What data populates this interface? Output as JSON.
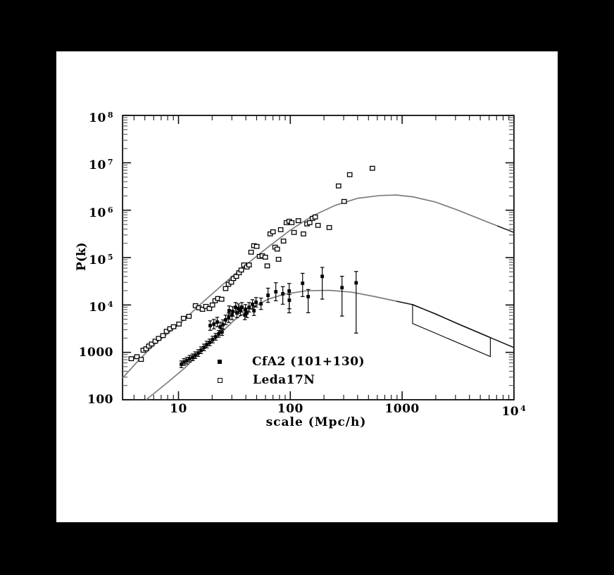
{
  "colors": {
    "page_bg": "#000000",
    "panel_bg": "#ffffff",
    "ink": "#000000",
    "curve_gray": "#7d7d7d"
  },
  "chart_data": {
    "type": "scatter",
    "xlabel": "scale (Mpc/h)",
    "ylabel": "P(k)",
    "x_axis": {
      "log": true,
      "range_log10": [
        0.5,
        4.0
      ],
      "ticks": [
        {
          "main": "10",
          "sup": "",
          "log": 1
        },
        {
          "main": "100",
          "sup": "",
          "log": 2
        },
        {
          "main": "1000",
          "sup": "",
          "log": 3
        },
        {
          "main": "10",
          "sup": "4",
          "log": 4
        }
      ]
    },
    "y_axis": {
      "log": true,
      "range_log10": [
        2,
        8
      ],
      "ticks": [
        {
          "main": "10",
          "sup": "8",
          "log": 8
        },
        {
          "main": "10",
          "sup": "7",
          "log": 7
        },
        {
          "main": "10",
          "sup": "6",
          "log": 6
        },
        {
          "main": "10",
          "sup": "5",
          "log": 5
        },
        {
          "main": "10",
          "sup": "4",
          "log": 4
        },
        {
          "main": "1000",
          "sup": "",
          "log": 3
        },
        {
          "main": "100",
          "sup": "",
          "log": 2
        }
      ]
    },
    "series": [
      {
        "name": "CfA2 (101+130)",
        "marker": "filled-square",
        "points_sPerr": [
          [
            10.6,
            560,
            0.07,
            0.07
          ],
          [
            11.2,
            625,
            0.07,
            0.07
          ],
          [
            11.9,
            668,
            0.07,
            0.07
          ],
          [
            12.6,
            735,
            0.07,
            0.07
          ],
          [
            13.4,
            786,
            0.07,
            0.07
          ],
          [
            14.1,
            872,
            0.07,
            0.07
          ],
          [
            15,
            967,
            0.07,
            0.07
          ],
          [
            15.9,
            1110,
            0.07,
            0.07
          ],
          [
            16.9,
            1270,
            0.07,
            0.07
          ],
          [
            17.9,
            1460,
            0.07,
            0.07
          ],
          [
            19,
            1620,
            0.07,
            0.07
          ],
          [
            20.2,
            1860,
            0.07,
            0.07
          ],
          [
            21.5,
            2130,
            0.07,
            0.07
          ],
          [
            22.9,
            2450,
            0.07,
            0.07
          ],
          [
            24.5,
            2680,
            0.07,
            0.07
          ],
          [
            19.2,
            3670,
            0.1,
            0.1
          ],
          [
            20.7,
            3940,
            0.1,
            0.1
          ],
          [
            22.2,
            4360,
            0.1,
            0.1
          ],
          [
            23.6,
            3440,
            0.1,
            0.1
          ],
          [
            25,
            3850,
            0.1,
            0.1
          ],
          [
            26.4,
            4840,
            0.1,
            0.1
          ],
          [
            28.1,
            5360,
            0.1,
            0.1
          ],
          [
            30.1,
            6150,
            0.1,
            0.1
          ],
          [
            28.4,
            7560,
            0.1,
            0.1
          ],
          [
            30.6,
            7310,
            0.1,
            0.1
          ],
          [
            32.4,
            8940,
            0.1,
            0.1
          ],
          [
            34.4,
            8370,
            0.1,
            0.1
          ],
          [
            36.9,
            8940,
            0.1,
            0.1
          ],
          [
            33.3,
            6810,
            0.1,
            0.1
          ],
          [
            35.9,
            7560,
            0.1,
            0.1
          ],
          [
            39.2,
            6150,
            0.1,
            0.1
          ],
          [
            40.9,
            6810,
            0.1,
            0.1
          ],
          [
            39.7,
            8100,
            0.1,
            0.1
          ],
          [
            42.8,
            8940,
            0.1,
            0.1
          ],
          [
            45.9,
            10280,
            0.1,
            0.1
          ],
          [
            49.4,
            11400,
            0.1,
            0.1
          ],
          [
            47.3,
            7560,
            0.1,
            0.1
          ],
          [
            54.7,
            10600,
            0.12,
            0.12
          ],
          [
            63.2,
            16000,
            0.15,
            0.15
          ],
          [
            74.2,
            19000,
            0.19,
            0.19
          ],
          [
            85.7,
            17200,
            0.22,
            0.15
          ],
          [
            97.7,
            19700,
            0.46,
            0.16
          ],
          [
            98,
            12600,
            0.18,
            0.12
          ],
          [
            128.8,
            28700,
            0.28,
            0.21
          ],
          [
            144.5,
            15000,
            0.34,
            0.15
          ],
          [
            193,
            40100,
            0.48,
            0.19
          ],
          [
            290,
            23200,
            0.6,
            0.24
          ],
          [
            388,
            29300,
            1.06,
            0.24
          ]
        ]
      },
      {
        "name": "Leda17N",
        "marker": "open-square",
        "points_sP": [
          [
            3.78,
            735
          ],
          [
            4.25,
            810
          ],
          [
            4.63,
            710
          ],
          [
            4.84,
            1110
          ],
          [
            5.13,
            1190
          ],
          [
            5.43,
            1360
          ],
          [
            5.75,
            1500
          ],
          [
            6.2,
            1720
          ],
          [
            6.65,
            1970
          ],
          [
            7.26,
            2260
          ],
          [
            7.82,
            2780
          ],
          [
            8.39,
            3150
          ],
          [
            9.04,
            3470
          ],
          [
            10.1,
            3960
          ],
          [
            11.1,
            5220
          ],
          [
            12.4,
            5770
          ],
          [
            14.2,
            9660
          ],
          [
            15.2,
            8700
          ],
          [
            16.4,
            8100
          ],
          [
            17.6,
            9330
          ],
          [
            18.9,
            8400
          ],
          [
            20.1,
            10000
          ],
          [
            21.3,
            12300
          ],
          [
            22.5,
            13700
          ],
          [
            24.3,
            13200
          ],
          [
            26.4,
            22200
          ],
          [
            28,
            27300
          ],
          [
            29.7,
            30300
          ],
          [
            31,
            36100
          ],
          [
            32.9,
            40100
          ],
          [
            34.8,
            47800
          ],
          [
            36.4,
            54600
          ],
          [
            38.5,
            69900
          ],
          [
            40.9,
            63200
          ],
          [
            42.8,
            69900
          ],
          [
            44.6,
            130000
          ],
          [
            47.3,
            178000
          ],
          [
            50.1,
            172000
          ],
          [
            53.1,
            106000
          ],
          [
            56.2,
            109000
          ],
          [
            59.7,
            102000
          ],
          [
            62.2,
            66800
          ],
          [
            66.1,
            316000
          ],
          [
            70,
            350000
          ],
          [
            73.1,
            166000
          ],
          [
            76.4,
            151000
          ],
          [
            78.5,
            92000
          ],
          [
            82,
            388000
          ],
          [
            86.9,
            223000
          ],
          [
            92.3,
            546000
          ],
          [
            97.7,
            585000
          ],
          [
            103,
            546000
          ],
          [
            108,
            339000
          ],
          [
            118,
            600000
          ],
          [
            131,
            316000
          ],
          [
            141,
            512000
          ],
          [
            149,
            546000
          ],
          [
            158,
            671000
          ],
          [
            167,
            719000
          ],
          [
            177,
            478000
          ],
          [
            223,
            430000
          ],
          [
            270,
            3250000
          ],
          [
            303,
            1530000
          ],
          [
            340,
            5620000
          ],
          [
            542,
            7660000
          ]
        ]
      }
    ],
    "curves": [
      {
        "name": "leda-model",
        "color": "#7d7d7d",
        "black_after_log": 3.8,
        "points_sP": [
          [
            3.16,
            288
          ],
          [
            4.47,
            708
          ],
          [
            6.31,
            1585
          ],
          [
            10,
            3800
          ],
          [
            15.8,
            10470
          ],
          [
            25.1,
            27500
          ],
          [
            39.8,
            69200
          ],
          [
            63.1,
            166000
          ],
          [
            100,
            380000
          ],
          [
            158,
            759000
          ],
          [
            251,
            1260000
          ],
          [
            398,
            1780000
          ],
          [
            631,
            2040000
          ],
          [
            891,
            2090000
          ],
          [
            1259,
            1910000
          ],
          [
            1995,
            1480000
          ],
          [
            3162,
            1000000
          ],
          [
            5012,
            646000
          ],
          [
            7079,
            468000
          ],
          [
            10000,
            339000
          ]
        ]
      },
      {
        "name": "cfa2-model",
        "color": "#7d7d7d",
        "black_after_log": 2.8,
        "points_sP": [
          [
            5.13,
            100
          ],
          [
            7.94,
            229
          ],
          [
            11.5,
            479
          ],
          [
            19.1,
            1550
          ],
          [
            31.6,
            4790
          ],
          [
            44.7,
            8510
          ],
          [
            63.1,
            13200
          ],
          [
            89.1,
            17000
          ],
          [
            141,
            20000
          ],
          [
            224,
            20400
          ],
          [
            355,
            18600
          ],
          [
            562,
            15100
          ],
          [
            891,
            12000
          ],
          [
            1230,
            10200
          ],
          [
            2000,
            6460
          ],
          [
            3160,
            3980
          ],
          [
            5010,
            2510
          ],
          [
            7080,
            1780
          ],
          [
            10000,
            1260
          ]
        ]
      }
    ],
    "box_annotation": {
      "points_sP": [
        [
          1240,
          10300
        ],
        [
          6150,
          2060
        ],
        [
          6150,
          815
        ],
        [
          1240,
          4070
        ]
      ]
    },
    "legend": {
      "items": [
        {
          "label": "CfA2 (101+130)",
          "marker": "filled-square"
        },
        {
          "label": "Leda17N",
          "marker": "open-square"
        }
      ]
    }
  }
}
